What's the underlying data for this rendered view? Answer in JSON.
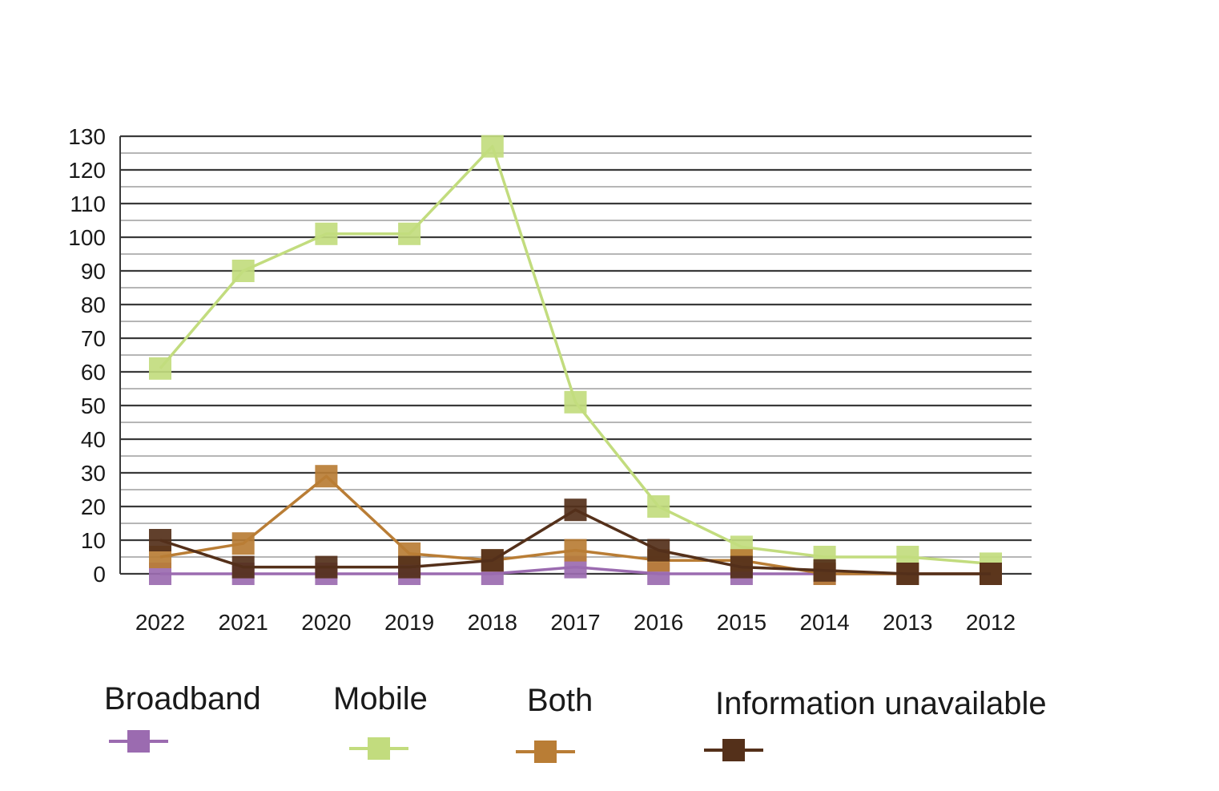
{
  "chart_data": {
    "type": "line",
    "title": "",
    "xlabel": "",
    "ylabel": "",
    "categories": [
      "2022",
      "2021",
      "2020",
      "2019",
      "2018",
      "2017",
      "2016",
      "2015",
      "2014",
      "2013",
      "2012"
    ],
    "ylim": [
      0,
      130
    ],
    "yticks": [
      0,
      10,
      20,
      30,
      40,
      50,
      60,
      70,
      80,
      90,
      100,
      110,
      120,
      130
    ],
    "grid": true,
    "series": [
      {
        "name": "Broadband",
        "color": "#9b6bb0",
        "values": [
          0,
          0,
          0,
          0,
          0,
          2,
          0,
          0,
          0,
          0,
          0
        ]
      },
      {
        "name": "Mobile",
        "color": "#c2dc7e",
        "values": [
          61,
          90,
          101,
          101,
          127,
          51,
          20,
          8,
          5,
          5,
          3
        ]
      },
      {
        "name": "Both",
        "color": "#b97d35",
        "values": [
          5,
          9,
          29,
          6,
          4,
          7,
          4,
          4,
          0,
          0,
          0
        ]
      },
      {
        "name": "Information unavailable",
        "color": "#54301a",
        "values": [
          10,
          2,
          2,
          2,
          4,
          19,
          7,
          2,
          1,
          0,
          0
        ]
      }
    ]
  },
  "legend": {
    "position": "bottom",
    "items": [
      {
        "label": "Broadband",
        "color": "#9b6bb0"
      },
      {
        "label": "Mobile",
        "color": "#c2dc7e"
      },
      {
        "label": "Both",
        "color": "#b97d35"
      },
      {
        "label": "Information unavailable",
        "color": "#54301a"
      }
    ]
  }
}
